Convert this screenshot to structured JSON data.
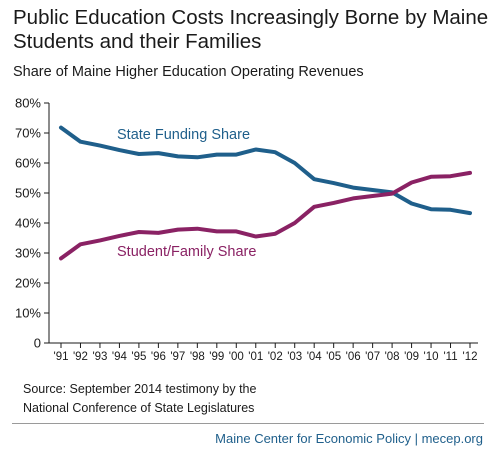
{
  "header": {
    "title": "Public Education Costs Increasingly Borne by Maine Students and their Families",
    "subtitle": "Share of Maine Higher Education Operating Revenues"
  },
  "source": {
    "line1": "Source: September 2014 testimony by the",
    "line2": "National Conference of State Legislatures"
  },
  "footer": {
    "text": "Maine Center for Economic Policy | mecep.org"
  },
  "chart_data": {
    "type": "line",
    "x": [
      "'91",
      "'92",
      "'93",
      "'94",
      "'95",
      "'96",
      "'97",
      "'98",
      "'99",
      "'00",
      "'01",
      "'02",
      "'03",
      "'04",
      "'05",
      "'06",
      "'07",
      "'08",
      "'09",
      "'10",
      "'11",
      "'12"
    ],
    "y_ticks": [
      "0",
      "10%",
      "20%",
      "30%",
      "40%",
      "50%",
      "60%",
      "70%",
      "80%"
    ],
    "ylim": [
      0,
      80
    ],
    "grid": false,
    "series": [
      {
        "name": "State Funding Share",
        "color": "#1f5f8b",
        "values": [
          71.8,
          67.1,
          65.8,
          64.3,
          63.0,
          63.3,
          62.2,
          61.9,
          62.8,
          62.8,
          64.5,
          63.6,
          60.0,
          54.6,
          53.3,
          51.8,
          51.0,
          50.2,
          46.5,
          44.6,
          44.4,
          43.3
        ]
      },
      {
        "name": "Student/Family Share",
        "color": "#8a2264",
        "values": [
          28.2,
          32.9,
          34.2,
          35.7,
          37.0,
          36.7,
          37.8,
          38.1,
          37.2,
          37.2,
          35.5,
          36.4,
          40.0,
          45.4,
          46.7,
          48.2,
          49.0,
          49.8,
          53.5,
          55.4,
          55.6,
          56.7
        ]
      }
    ]
  }
}
